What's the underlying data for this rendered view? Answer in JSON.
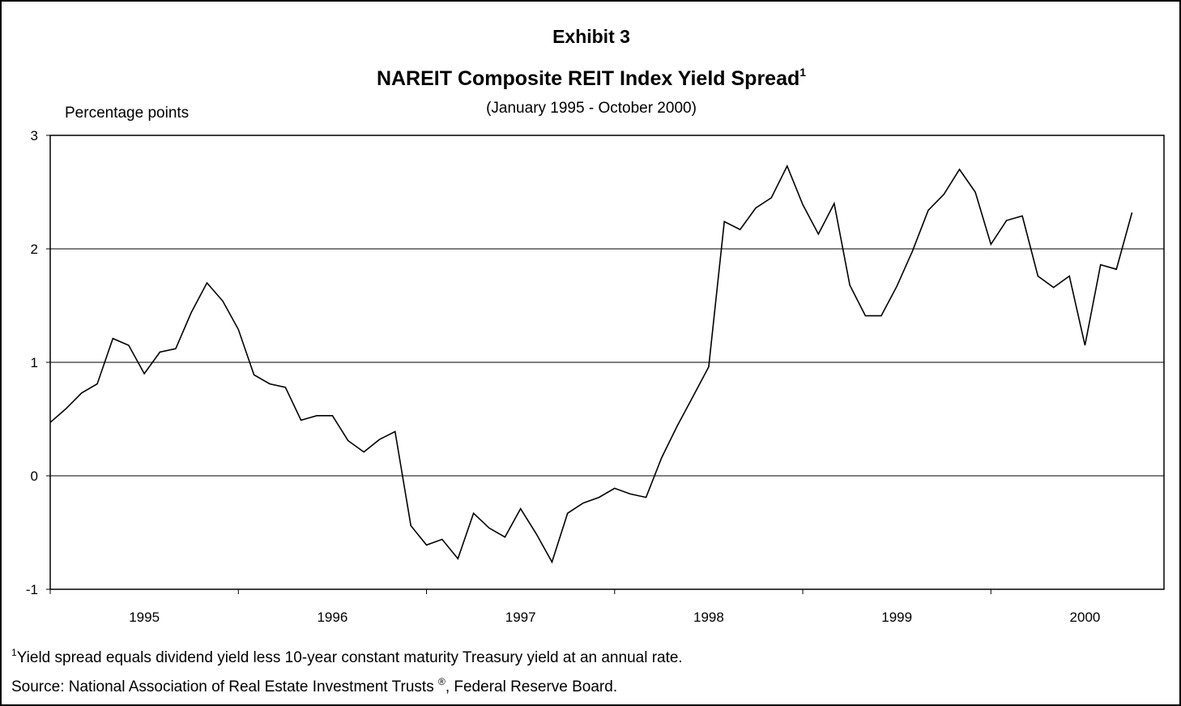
{
  "chart_data": {
    "type": "line",
    "title": "Exhibit 3",
    "subtitle": "NAREIT Composite REIT Index Yield Spread",
    "subtitle_note": "1",
    "date_range": "(January 1995 - October 2000)",
    "y_label": "Percentage points",
    "x": [
      1995.0,
      1995.083,
      1995.167,
      1995.25,
      1995.333,
      1995.417,
      1995.5,
      1995.583,
      1995.667,
      1995.75,
      1995.833,
      1995.917,
      1996.0,
      1996.083,
      1996.167,
      1996.25,
      1996.333,
      1996.417,
      1996.5,
      1996.583,
      1996.667,
      1996.75,
      1996.833,
      1996.917,
      1997.0,
      1997.083,
      1997.167,
      1997.25,
      1997.333,
      1997.417,
      1997.5,
      1997.583,
      1997.667,
      1997.75,
      1997.833,
      1997.917,
      1998.0,
      1998.083,
      1998.167,
      1998.25,
      1998.333,
      1998.417,
      1998.5,
      1998.583,
      1998.667,
      1998.75,
      1998.833,
      1998.917,
      1999.0,
      1999.083,
      1999.167,
      1999.25,
      1999.333,
      1999.417,
      1999.5,
      1999.583,
      1999.667,
      1999.75,
      1999.833,
      1999.917,
      2000.0,
      2000.083,
      2000.167,
      2000.25,
      2000.333,
      2000.417,
      2000.5,
      2000.583,
      2000.667,
      2000.75
    ],
    "series": [
      {
        "name": "Yield spread",
        "color": "#000000",
        "values": [
          0.47,
          0.59,
          0.73,
          0.81,
          1.21,
          1.15,
          0.9,
          1.09,
          1.12,
          1.44,
          1.7,
          1.54,
          1.29,
          0.89,
          0.81,
          0.78,
          0.49,
          0.53,
          0.53,
          0.31,
          0.21,
          0.32,
          0.39,
          -0.44,
          -0.61,
          -0.56,
          -0.73,
          -0.33,
          -0.46,
          -0.54,
          -0.29,
          -0.51,
          -0.76,
          -0.33,
          -0.24,
          -0.19,
          -0.11,
          -0.16,
          -0.19,
          0.16,
          0.44,
          0.7,
          0.96,
          2.24,
          2.17,
          2.36,
          2.45,
          2.73,
          2.39,
          2.13,
          2.4,
          1.68,
          1.41,
          1.41,
          1.67,
          1.98,
          2.34,
          2.48,
          2.7,
          2.5,
          2.04,
          2.25,
          2.29,
          1.76,
          1.66,
          1.76,
          1.15,
          1.86,
          1.82,
          2.32
        ]
      }
    ],
    "xlim": [
      1995,
      2000.92
    ],
    "xtick_marks": [
      1995,
      1996,
      1997,
      1998,
      1999,
      2000
    ],
    "xticks": [
      {
        "value": 1995.5,
        "label": "1995"
      },
      {
        "value": 1996.5,
        "label": "1996"
      },
      {
        "value": 1997.5,
        "label": "1997"
      },
      {
        "value": 1998.5,
        "label": "1998"
      },
      {
        "value": 1999.5,
        "label": "1999"
      },
      {
        "value": 2000.5,
        "label": "2000"
      }
    ],
    "ylim": [
      -1,
      3
    ],
    "yticks": [
      -1,
      0,
      1,
      2,
      3
    ],
    "grid": true,
    "footnote_marker": "1",
    "footnote": "Yield spread equals dividend yield less 10-year constant maturity Treasury yield at an annual rate.",
    "source": "Source: National Association of Real Estate Investment Trusts ",
    "source_mark": "®",
    "source_end": ", Federal Reserve Board."
  }
}
